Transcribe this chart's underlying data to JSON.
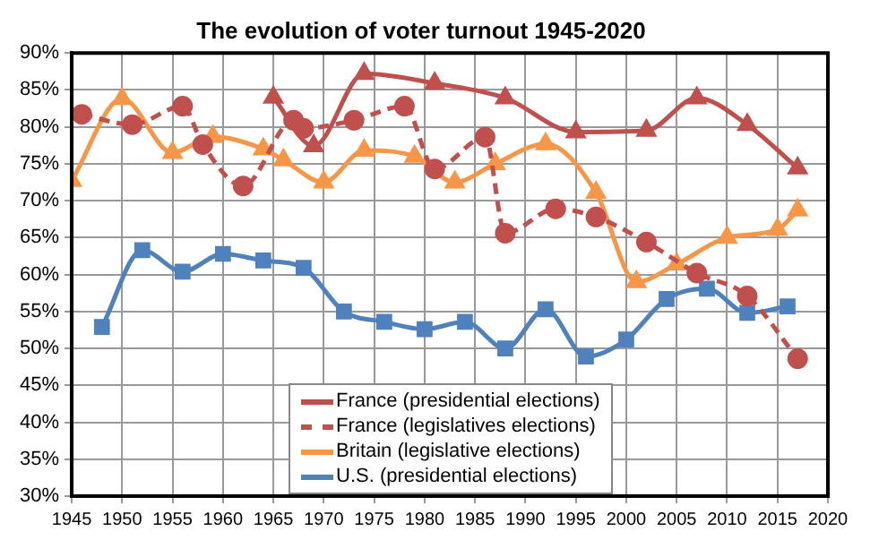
{
  "chart_data": {
    "type": "line",
    "title": "The evolution of voter turnout 1945-2020",
    "xlim": [
      1945,
      2020
    ],
    "xticks": [
      1945,
      1950,
      1955,
      1960,
      1965,
      1970,
      1975,
      1980,
      1985,
      1990,
      1995,
      2000,
      2005,
      2010,
      2015,
      2020
    ],
    "ylim": [
      30,
      90
    ],
    "yticks": [
      {
        "value": 30,
        "label": "30%"
      },
      {
        "value": 35,
        "label": "35%"
      },
      {
        "value": 40,
        "label": "40%"
      },
      {
        "value": 45,
        "label": "45%"
      },
      {
        "value": 50,
        "label": "50%"
      },
      {
        "value": 55,
        "label": "55%"
      },
      {
        "value": 60,
        "label": "60%"
      },
      {
        "value": 65,
        "label": "65%"
      },
      {
        "value": 70,
        "label": "70%"
      },
      {
        "value": 75,
        "label": "75%"
      },
      {
        "value": 80,
        "label": "80%"
      },
      {
        "value": 85,
        "label": "85%"
      },
      {
        "value": 90,
        "label": "90%"
      }
    ],
    "grid": true,
    "legend": "bottom",
    "series": [
      {
        "name": "France (presidential elections)",
        "color": "#c0504d",
        "marker": "triangle",
        "line_style": "solid",
        "x": [
          1965,
          1969,
          1974,
          1981,
          1988,
          1995,
          2002,
          2007,
          2012,
          2017
        ],
        "values": [
          84.0,
          77.4,
          87.2,
          85.9,
          83.9,
          79.3,
          79.5,
          83.9,
          80.3,
          74.4
        ]
      },
      {
        "name": "France (legislatives elections)",
        "color": "#c0504d",
        "marker": "circle",
        "line_style": "dashed",
        "x": [
          1946,
          1951,
          1956,
          1958,
          1962,
          1967,
          1968,
          1973,
          1978,
          1981,
          1986,
          1988,
          1993,
          1997,
          2002,
          2007,
          2012,
          2017
        ],
        "values": [
          81.7,
          80.3,
          82.8,
          77.6,
          72.0,
          80.9,
          79.8,
          80.9,
          82.8,
          74.3,
          78.6,
          65.6,
          68.9,
          67.8,
          64.4,
          60.2,
          57.1,
          48.6
        ]
      },
      {
        "name": "Britain (legislative elections)",
        "color": "#f79646",
        "marker": "triangle",
        "line_style": "solid",
        "x": [
          1945,
          1950,
          1955,
          1959,
          1964,
          1966,
          1970,
          1974,
          1979,
          1983,
          1987,
          1992,
          1997,
          2001,
          2005,
          2010,
          2015,
          2017
        ],
        "values": [
          72.7,
          83.8,
          76.5,
          78.7,
          77.0,
          75.5,
          72.5,
          76.8,
          76.0,
          72.5,
          75.0,
          77.7,
          71.1,
          59.0,
          61.4,
          65.0,
          66.1,
          68.7
        ]
      },
      {
        "name": "U.S. (presidential elections)",
        "color": "#4f81bd",
        "marker": "square",
        "line_style": "solid",
        "x": [
          1948,
          1952,
          1956,
          1960,
          1964,
          1968,
          1972,
          1976,
          1980,
          1984,
          1988,
          1992,
          1996,
          2000,
          2004,
          2008,
          2012,
          2016
        ],
        "values": [
          52.9,
          63.3,
          60.4,
          62.8,
          61.9,
          60.9,
          55.0,
          53.6,
          52.6,
          53.6,
          50.0,
          55.3,
          48.9,
          51.2,
          56.7,
          58.1,
          54.8,
          55.7
        ]
      }
    ]
  }
}
